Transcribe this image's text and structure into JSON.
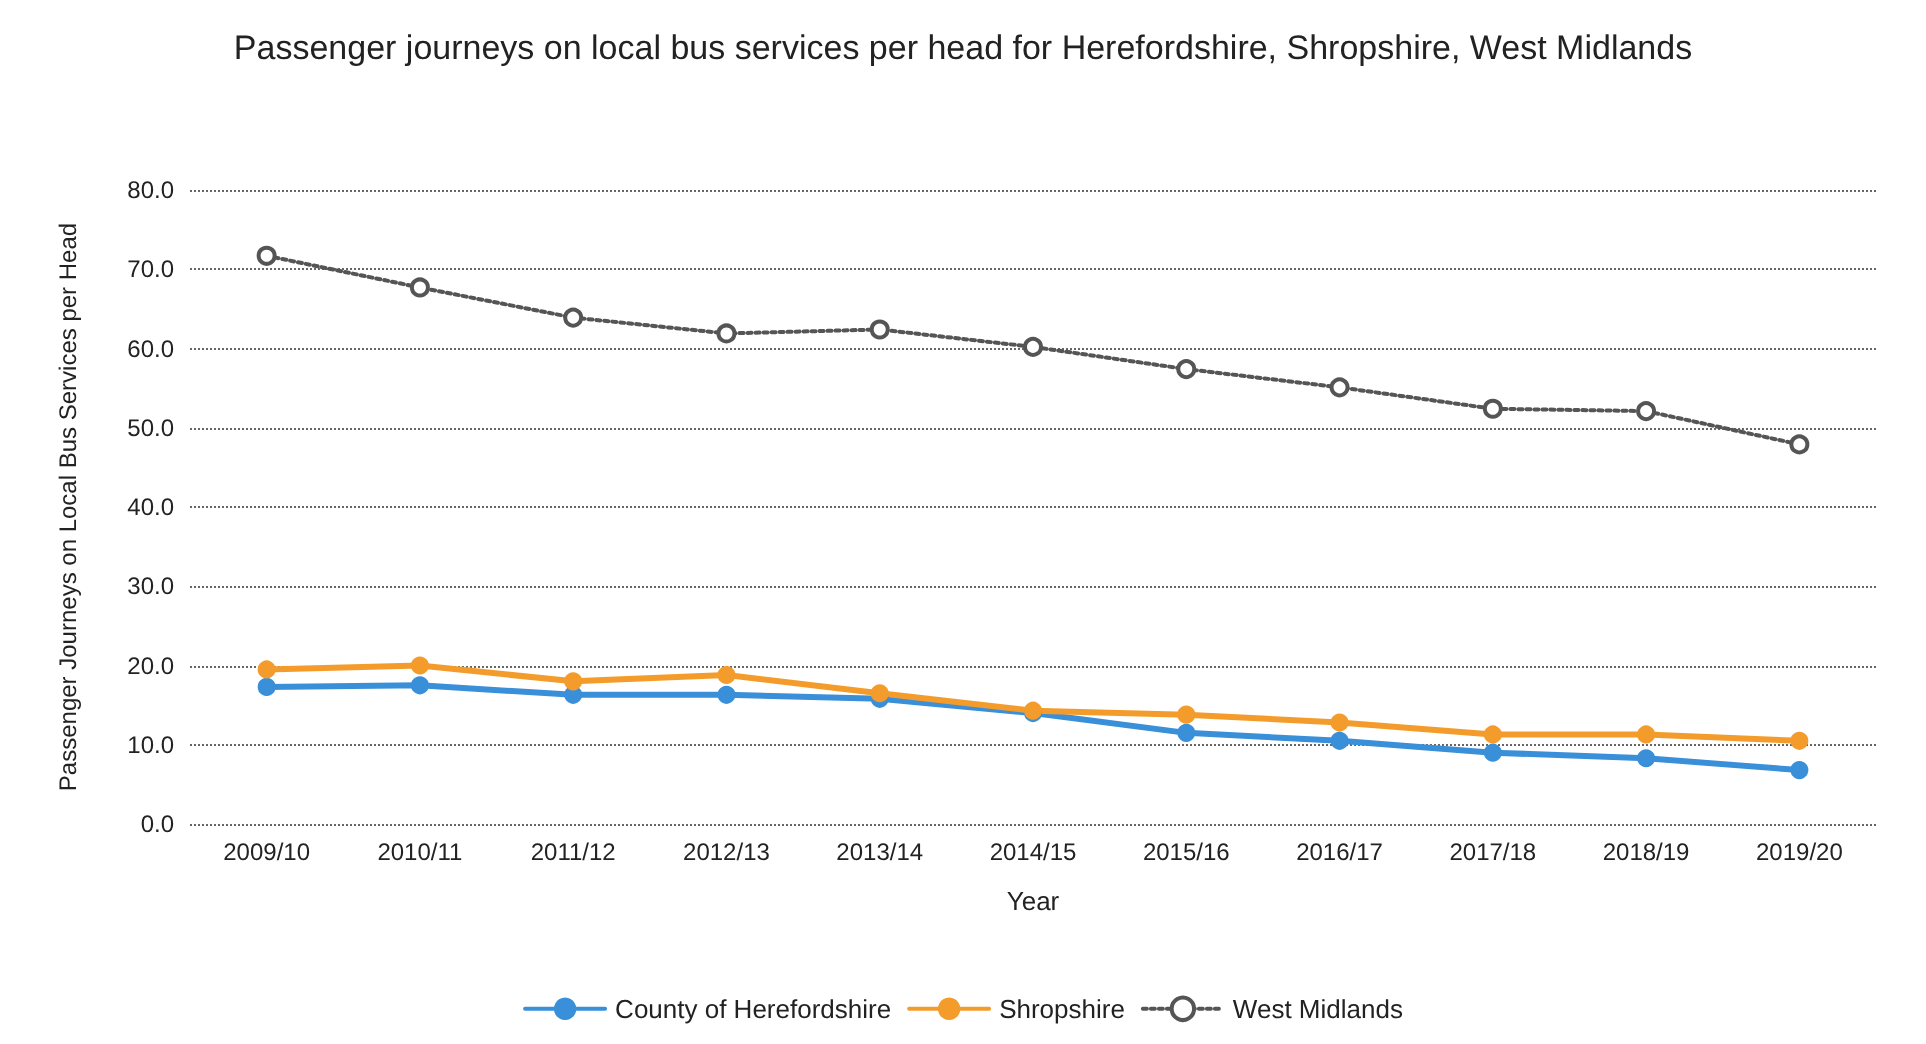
{
  "chart_data": {
    "type": "line",
    "title": "Passenger journeys on local bus services per head for Herefordshire, Shropshire, West Midlands",
    "xlabel": "Year",
    "ylabel": "Passenger Journeys on Local Bus Services per Head",
    "categories": [
      "2009/10",
      "2010/11",
      "2011/12",
      "2012/13",
      "2013/14",
      "2014/15",
      "2015/16",
      "2016/17",
      "2017/18",
      "2018/19",
      "2019/20"
    ],
    "series": [
      {
        "name": "County of Herefordshire",
        "color": "#3a8fd9",
        "values": [
          17.3,
          17.5,
          16.3,
          16.3,
          15.8,
          14.0,
          11.5,
          10.5,
          9.0,
          8.3,
          6.8
        ]
      },
      {
        "name": "Shropshire",
        "color": "#f39c2c",
        "values": [
          19.5,
          20.0,
          18.0,
          18.8,
          16.5,
          14.3,
          13.8,
          12.8,
          11.3,
          11.3,
          10.5
        ]
      },
      {
        "name": "West Midlands",
        "color": "#555555",
        "line_style": "dotted",
        "values": [
          71.7,
          67.7,
          63.9,
          61.9,
          62.4,
          60.2,
          57.4,
          55.1,
          52.4,
          52.1,
          47.9
        ]
      }
    ],
    "ylim": [
      0,
      80
    ],
    "yticks": [
      {
        "value": 0,
        "label": "0.0"
      },
      {
        "value": 10,
        "label": "10.0"
      },
      {
        "value": 20,
        "label": "20.0"
      },
      {
        "value": 30,
        "label": "30.0"
      },
      {
        "value": 40,
        "label": "40.0"
      },
      {
        "value": 50,
        "label": "50.0"
      },
      {
        "value": 60,
        "label": "60.0"
      },
      {
        "value": 70,
        "label": "70.0"
      },
      {
        "value": 80,
        "label": "80.0"
      }
    ],
    "grid": "y",
    "legend": "bottom",
    "marker": "circle",
    "line_style": "solid"
  }
}
